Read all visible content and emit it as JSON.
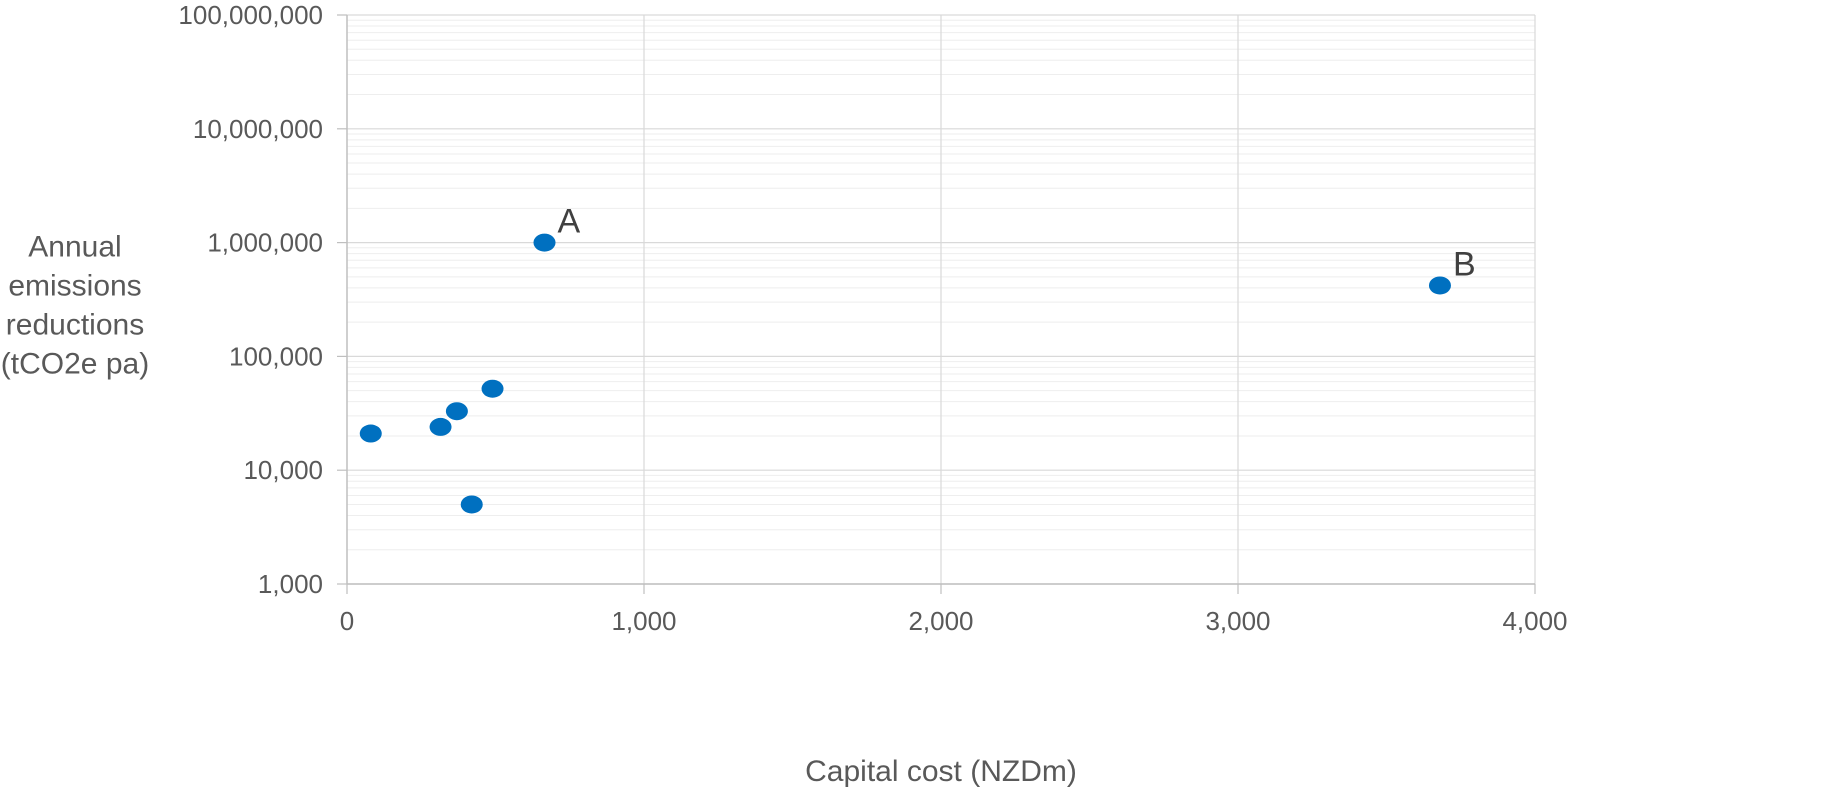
{
  "chart_data": {
    "type": "scatter",
    "title": "",
    "xlabel": "Capital cost (NZDm)",
    "ylabel": [
      "Annual",
      "emissions",
      "reductions",
      "(tCO2e pa)"
    ],
    "xlim": [
      0,
      4000
    ],
    "ylim": [
      1000,
      100000000
    ],
    "y_scale": "log",
    "x_ticks": [
      0,
      1000,
      2000,
      3000,
      4000
    ],
    "x_tick_labels": [
      "0",
      "1,000",
      "2,000",
      "3,000",
      "4,000"
    ],
    "y_ticks": [
      1000,
      10000,
      100000,
      1000000,
      10000000,
      100000000
    ],
    "y_tick_labels": [
      "1,000",
      "10,000",
      "100,000",
      "1,000,000",
      "10,000,000",
      "100,000,000"
    ],
    "grid": true,
    "marker_color": "#0070C0",
    "series": [
      {
        "points": [
          {
            "x": 80,
            "y": 21000,
            "label": ""
          },
          {
            "x": 315,
            "y": 24000,
            "label": ""
          },
          {
            "x": 370,
            "y": 33000,
            "label": ""
          },
          {
            "x": 420,
            "y": 5000,
            "label": ""
          },
          {
            "x": 490,
            "y": 52000,
            "label": ""
          },
          {
            "x": 665,
            "y": 1000000,
            "label": "A"
          },
          {
            "x": 3680,
            "y": 420000,
            "label": "B"
          }
        ]
      }
    ]
  }
}
